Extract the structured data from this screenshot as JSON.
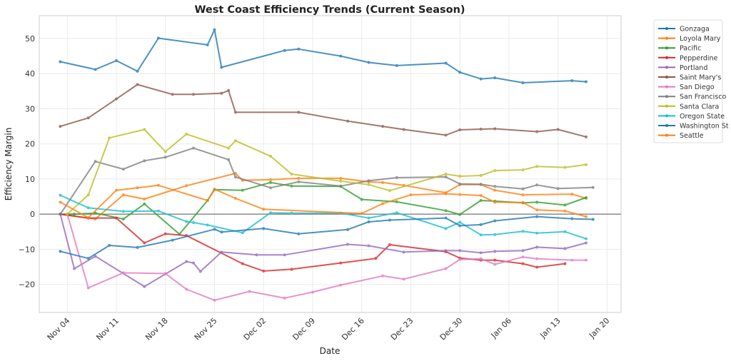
{
  "chart_data": {
    "type": "line",
    "title": "West Coast Efficiency Trends (Current Season)",
    "xlabel": "Date",
    "ylabel": "Efficiency Margin",
    "x_ticks": [
      "Nov 04",
      "Nov 11",
      "Nov 18",
      "Nov 25",
      "Dec 02",
      "Dec 09",
      "Dec 16",
      "Dec 23",
      "Dec 30",
      "Jan 06",
      "Jan 13",
      "Jan 20"
    ],
    "y_ticks": [
      -20,
      -10,
      0,
      10,
      20,
      30,
      40,
      50
    ],
    "xlim": [
      "Oct 31",
      "Jan 22"
    ],
    "ylim": [
      -28,
      56.5
    ],
    "grid": true,
    "reference_line_y": 0,
    "legend_position": "outside-top-right",
    "series": [
      {
        "name": "Gonzaga",
        "color": "#1f77b4",
        "points": [
          [
            "Nov 03",
            43.4
          ],
          [
            "Nov 08",
            41.2
          ],
          [
            "Nov 11",
            43.7
          ],
          [
            "Nov 14",
            40.7
          ],
          [
            "Nov 17",
            50.1
          ],
          [
            "Nov 24",
            48.2
          ],
          [
            "Nov 25",
            52.5
          ],
          [
            "Nov 26",
            41.8
          ],
          [
            "Dec 05",
            46.6
          ],
          [
            "Dec 07",
            47.0
          ],
          [
            "Dec 13",
            45.0
          ],
          [
            "Dec 17",
            43.2
          ],
          [
            "Dec 21",
            42.3
          ],
          [
            "Dec 28",
            43.0
          ],
          [
            "Dec 30",
            40.4
          ],
          [
            "Jan 02",
            38.5
          ],
          [
            "Jan 04",
            38.8
          ],
          [
            "Jan 08",
            37.4
          ],
          [
            "Jan 15",
            38.0
          ],
          [
            "Jan 17",
            37.7
          ]
        ]
      },
      {
        "name": "Loyola Mary",
        "color": "#ff7f0e",
        "points": [
          [
            "Nov 03",
            0
          ],
          [
            "Nov 08",
            -1.4
          ],
          [
            "Nov 12",
            5.5
          ],
          [
            "Nov 15",
            4.3
          ],
          [
            "Nov 21",
            8.1
          ],
          [
            "Nov 28",
            11.6
          ],
          [
            "Nov 29",
            9.6
          ],
          [
            "Dec 03",
            9.8
          ],
          [
            "Dec 07",
            10.2
          ],
          [
            "Dec 13",
            10.2
          ],
          [
            "Dec 17",
            9.2
          ],
          [
            "Dec 19",
            9.0
          ],
          [
            "Dec 22",
            8.2
          ],
          [
            "Dec 28",
            6.1
          ],
          [
            "Dec 30",
            8.4
          ],
          [
            "Jan 02",
            8.4
          ],
          [
            "Jan 04",
            6.8
          ],
          [
            "Jan 08",
            5.5
          ],
          [
            "Jan 15",
            5.7
          ],
          [
            "Jan 17",
            4.5
          ]
        ]
      },
      {
        "name": "Pacific",
        "color": "#2ca02c",
        "points": [
          [
            "Nov 03",
            0
          ],
          [
            "Nov 05",
            0
          ],
          [
            "Nov 08",
            0.3
          ],
          [
            "Nov 12",
            -1.4
          ],
          [
            "Nov 15",
            2.9
          ],
          [
            "Nov 20",
            -5.7
          ],
          [
            "Nov 24",
            3.9
          ],
          [
            "Nov 25",
            7.0
          ],
          [
            "Nov 29",
            6.8
          ],
          [
            "Dec 03",
            9.0
          ],
          [
            "Dec 06",
            8.0
          ],
          [
            "Dec 13",
            7.9
          ],
          [
            "Dec 16",
            4.2
          ],
          [
            "Dec 21",
            3.5
          ],
          [
            "Dec 28",
            1.0
          ],
          [
            "Dec 30",
            -0.1
          ],
          [
            "Jan 02",
            3.9
          ],
          [
            "Jan 04",
            3.7
          ],
          [
            "Jan 08",
            3.2
          ],
          [
            "Jan 10",
            3.4
          ],
          [
            "Jan 14",
            2.6
          ],
          [
            "Jan 17",
            4.7
          ]
        ]
      },
      {
        "name": "Pepperdine",
        "color": "#d62728",
        "points": [
          [
            "Nov 03",
            0
          ],
          [
            "Nov 07",
            -1.1
          ],
          [
            "Nov 11",
            -1.1
          ],
          [
            "Nov 15",
            -8.2
          ],
          [
            "Nov 18",
            -5.6
          ],
          [
            "Nov 21",
            -6.1
          ],
          [
            "Nov 29",
            -14.1
          ],
          [
            "Dec 02",
            -16.2
          ],
          [
            "Dec 06",
            -15.7
          ],
          [
            "Dec 13",
            -13.9
          ],
          [
            "Dec 18",
            -12.6
          ],
          [
            "Dec 20",
            -8.7
          ],
          [
            "Dec 28",
            -10.7
          ],
          [
            "Dec 30",
            -12.5
          ],
          [
            "Jan 02",
            -13.1
          ],
          [
            "Jan 04",
            -13.1
          ],
          [
            "Jan 08",
            -14.1
          ],
          [
            "Jan 10",
            -15.1
          ],
          [
            "Jan 14",
            -14.1
          ]
        ]
      },
      {
        "name": "Portland",
        "color": "#9467bd",
        "points": [
          [
            "Nov 03",
            0
          ],
          [
            "Nov 05",
            -15.5
          ],
          [
            "Nov 08",
            -12.0
          ],
          [
            "Nov 15",
            -20.6
          ],
          [
            "Nov 21",
            -13.5
          ],
          [
            "Nov 22",
            -13.9
          ],
          [
            "Nov 23",
            -16.3
          ],
          [
            "Nov 26",
            -10.8
          ],
          [
            "Dec 01",
            -11.6
          ],
          [
            "Dec 05",
            -11.6
          ],
          [
            "Dec 14",
            -8.6
          ],
          [
            "Dec 17",
            -9.0
          ],
          [
            "Dec 22",
            -10.8
          ],
          [
            "Dec 28",
            -10.4
          ],
          [
            "Dec 30",
            -10.4
          ],
          [
            "Jan 02",
            -11.0
          ],
          [
            "Jan 04",
            -10.6
          ],
          [
            "Jan 08",
            -10.4
          ],
          [
            "Jan 10",
            -9.4
          ],
          [
            "Jan 14",
            -9.8
          ],
          [
            "Jan 17",
            -8.2
          ]
        ]
      },
      {
        "name": "Saint Mary's",
        "color": "#8c564b",
        "points": [
          [
            "Nov 03",
            25.0
          ],
          [
            "Nov 07",
            27.4
          ],
          [
            "Nov 11",
            32.8
          ],
          [
            "Nov 14",
            36.9
          ],
          [
            "Nov 19",
            34.1
          ],
          [
            "Nov 22",
            34.1
          ],
          [
            "Nov 26",
            34.4
          ],
          [
            "Nov 27",
            35.2
          ],
          [
            "Nov 28",
            29.0
          ],
          [
            "Dec 07",
            29.0
          ],
          [
            "Dec 14",
            26.5
          ],
          [
            "Dec 19",
            25.0
          ],
          [
            "Dec 22",
            24.1
          ],
          [
            "Dec 28",
            22.5
          ],
          [
            "Dec 30",
            24.0
          ],
          [
            "Jan 02",
            24.2
          ],
          [
            "Jan 04",
            24.3
          ],
          [
            "Jan 10",
            23.5
          ],
          [
            "Jan 13",
            24.1
          ],
          [
            "Jan 17",
            22.0
          ]
        ]
      },
      {
        "name": "San Diego",
        "color": "#e377c2",
        "points": [
          [
            "Nov 04",
            0
          ],
          [
            "Nov 07",
            -21.0
          ],
          [
            "Nov 12",
            -16.7
          ],
          [
            "Nov 18",
            -16.9
          ],
          [
            "Nov 21",
            -21.4
          ],
          [
            "Nov 25",
            -24.5
          ],
          [
            "Nov 30",
            -22.0
          ],
          [
            "Dec 05",
            -23.9
          ],
          [
            "Dec 09",
            -22.2
          ],
          [
            "Dec 13",
            -20.2
          ],
          [
            "Dec 19",
            -17.6
          ],
          [
            "Dec 22",
            -18.5
          ],
          [
            "Dec 28",
            -15.5
          ],
          [
            "Dec 30",
            -12.9
          ],
          [
            "Jan 02",
            -12.7
          ],
          [
            "Jan 04",
            -14.3
          ],
          [
            "Jan 08",
            -12.2
          ],
          [
            "Jan 10",
            -12.7
          ],
          [
            "Jan 15",
            -13.1
          ],
          [
            "Jan 17",
            -13.1
          ]
        ]
      },
      {
        "name": "San Francisco",
        "color": "#7f7f7f",
        "points": [
          [
            "Nov 03",
            0
          ],
          [
            "Nov 08",
            15.0
          ],
          [
            "Nov 12",
            12.8
          ],
          [
            "Nov 15",
            15.2
          ],
          [
            "Nov 18",
            16.2
          ],
          [
            "Nov 22",
            18.8
          ],
          [
            "Nov 27",
            15.5
          ],
          [
            "Nov 28",
            10.6
          ],
          [
            "Dec 03",
            7.5
          ],
          [
            "Dec 07",
            9.2
          ],
          [
            "Dec 13",
            8.0
          ],
          [
            "Dec 17",
            9.5
          ],
          [
            "Dec 21",
            10.4
          ],
          [
            "Dec 28",
            10.6
          ],
          [
            "Dec 30",
            8.6
          ],
          [
            "Jan 02",
            8.5
          ],
          [
            "Jan 04",
            7.9
          ],
          [
            "Jan 08",
            7.2
          ],
          [
            "Jan 10",
            8.3
          ],
          [
            "Jan 13",
            7.3
          ],
          [
            "Jan 18",
            7.6
          ]
        ]
      },
      {
        "name": "Santa Clara",
        "color": "#bcbd22",
        "points": [
          [
            "Nov 04",
            0
          ],
          [
            "Nov 07",
            5.5
          ],
          [
            "Nov 10",
            21.7
          ],
          [
            "Nov 15",
            24.1
          ],
          [
            "Nov 18",
            17.8
          ],
          [
            "Nov 21",
            22.8
          ],
          [
            "Nov 27",
            18.8
          ],
          [
            "Nov 28",
            20.9
          ],
          [
            "Dec 03",
            16.5
          ],
          [
            "Dec 06",
            11.4
          ],
          [
            "Dec 13",
            9.4
          ],
          [
            "Dec 17",
            8.4
          ],
          [
            "Dec 20",
            6.7
          ],
          [
            "Dec 28",
            11.4
          ],
          [
            "Dec 30",
            10.8
          ],
          [
            "Jan 02",
            11.0
          ],
          [
            "Jan 04",
            12.4
          ],
          [
            "Jan 08",
            12.6
          ],
          [
            "Jan 10",
            13.6
          ],
          [
            "Jan 14",
            13.3
          ],
          [
            "Jan 17",
            14.1
          ]
        ]
      },
      {
        "name": "Oregon State",
        "color": "#17becf",
        "points": [
          [
            "Nov 03",
            5.4
          ],
          [
            "Nov 07",
            1.8
          ],
          [
            "Nov 12",
            0.8
          ],
          [
            "Nov 17",
            0.9
          ],
          [
            "Nov 21",
            -2.1
          ],
          [
            "Nov 22",
            -2.4
          ],
          [
            "Nov 24",
            -3.1
          ],
          [
            "Nov 29",
            -5.3
          ],
          [
            "Dec 03",
            0.4
          ],
          [
            "Dec 06",
            0.3
          ],
          [
            "Dec 13",
            0.3
          ],
          [
            "Dec 17",
            -1.1
          ],
          [
            "Dec 21",
            0.4
          ],
          [
            "Dec 28",
            -4.1
          ],
          [
            "Dec 30",
            -2.3
          ],
          [
            "Jan 02",
            -5.9
          ],
          [
            "Jan 04",
            -5.8
          ],
          [
            "Jan 08",
            -4.9
          ],
          [
            "Jan 10",
            -5.4
          ],
          [
            "Jan 14",
            -5.0
          ],
          [
            "Jan 17",
            -7.0
          ]
        ]
      },
      {
        "name": "Washington St",
        "color": "#1f77b4",
        "points": [
          [
            "Nov 03",
            -10.6
          ],
          [
            "Nov 07",
            -12.6
          ],
          [
            "Nov 10",
            -8.9
          ],
          [
            "Nov 14",
            -9.5
          ],
          [
            "Nov 19",
            -7.4
          ],
          [
            "Nov 25",
            -4.3
          ],
          [
            "Nov 26",
            -5.1
          ],
          [
            "Dec 02",
            -4.1
          ],
          [
            "Dec 07",
            -5.6
          ],
          [
            "Dec 14",
            -4.4
          ],
          [
            "Dec 17",
            -2.2
          ],
          [
            "Dec 20",
            -1.7
          ],
          [
            "Dec 28",
            -1.1
          ],
          [
            "Dec 30",
            -3.3
          ],
          [
            "Jan 02",
            -3.0
          ],
          [
            "Jan 04",
            -1.9
          ],
          [
            "Jan 10",
            -0.7
          ],
          [
            "Jan 15",
            -1.3
          ],
          [
            "Jan 18",
            -1.5
          ]
        ]
      },
      {
        "name": "Seattle",
        "color": "#ff7f0e",
        "points": [
          [
            "Nov 03",
            3.4
          ],
          [
            "Nov 07",
            -1.0
          ],
          [
            "Nov 11",
            6.8
          ],
          [
            "Nov 14",
            7.5
          ],
          [
            "Nov 17",
            8.2
          ],
          [
            "Nov 24",
            3.9
          ],
          [
            "Nov 25",
            7.1
          ],
          [
            "Nov 28",
            4.5
          ],
          [
            "Dec 02",
            1.4
          ],
          [
            "Dec 16",
            0.2
          ],
          [
            "Dec 19",
            3.0
          ],
          [
            "Dec 23",
            5.5
          ],
          [
            "Dec 28",
            5.8
          ],
          [
            "Dec 30",
            5.6
          ],
          [
            "Jan 02",
            5.3
          ],
          [
            "Jan 04",
            3.4
          ],
          [
            "Jan 08",
            3.3
          ],
          [
            "Jan 10",
            1.2
          ],
          [
            "Jan 14",
            0.9
          ],
          [
            "Jan 17",
            -0.7
          ]
        ]
      }
    ]
  }
}
